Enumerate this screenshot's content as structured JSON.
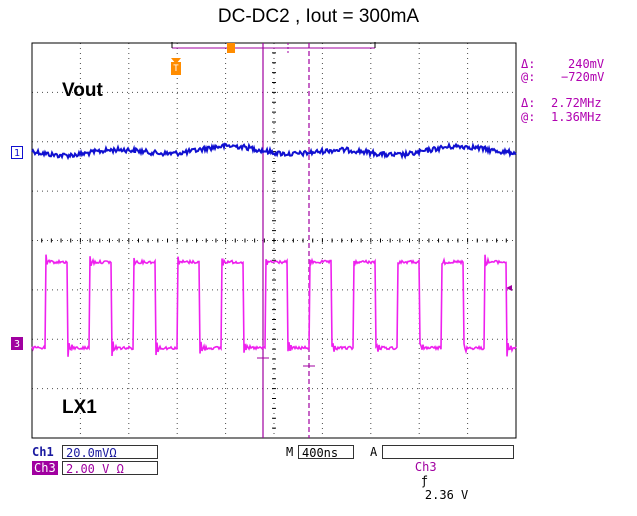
{
  "title": "DC-DC2 , Iout = 300mA",
  "labels": {
    "vout": "Vout",
    "lx1": "LX1"
  },
  "markers": {
    "ch1": "1",
    "ch3": "3",
    "trigger": "T"
  },
  "cursor_readout": {
    "delta_v_sym": "Δ:",
    "delta_v": "240mV",
    "at_v_sym": "@:",
    "at_v": "−720mV",
    "delta_f_sym": "Δ:",
    "delta_f": "2.72MHz",
    "at_f_sym": "@:",
    "at_f": "1.36MHz"
  },
  "status_bar": {
    "ch1_label": "Ch1",
    "ch1_scale": "20.0mVΩ",
    "ch3_label": "Ch3",
    "ch3_scale": "2.00 V Ω",
    "timebase_prefix": "M",
    "timebase": "400ns",
    "trigger_mode": "A",
    "trigger_src": "Ch3",
    "trigger_slope": "ƒ",
    "trigger_level": "2.36 V"
  },
  "colors": {
    "ch1": "#1010d0",
    "ch3": "#ee20ee",
    "cursor": "#a000a0",
    "grid": "#000000"
  },
  "chart_data": {
    "type": "line",
    "title": "DC-DC2 , Iout = 300mA",
    "grid": true,
    "x_divisions": 10,
    "y_divisions": 8,
    "timebase_per_div": "400ns",
    "series": [
      {
        "name": "Vout",
        "channel": "Ch1",
        "scale_per_div": "20.0mV",
        "kind": "ripple"
      },
      {
        "name": "LX1",
        "channel": "Ch3",
        "scale_per_div": "2.00 V",
        "kind": "square",
        "frequency": "2.72MHz",
        "high_div": 2.2,
        "low_div": -0.1
      }
    ]
  }
}
